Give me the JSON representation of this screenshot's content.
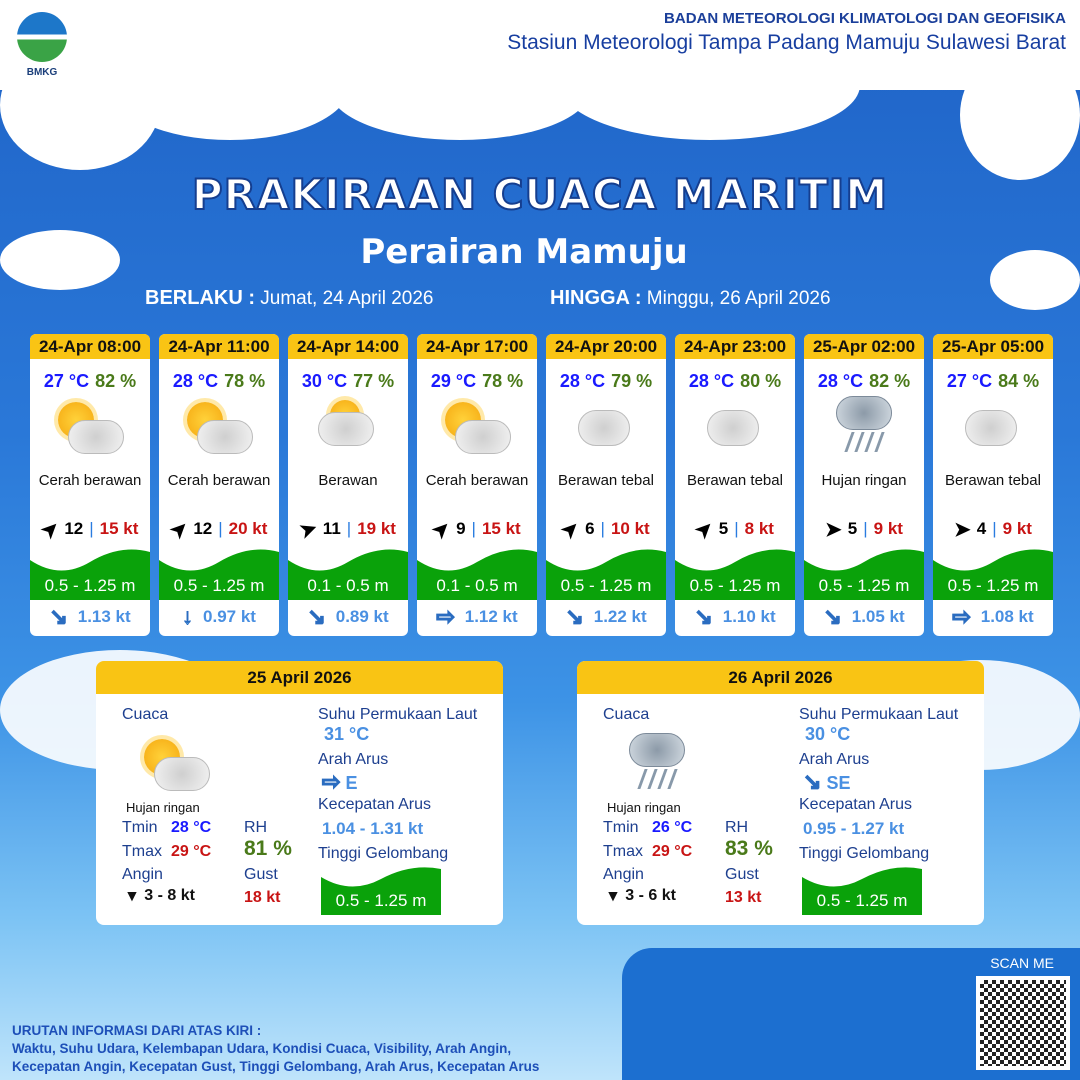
{
  "header": {
    "org": "BADAN METEOROLOGI KLIMATOLOGI DAN GEOFISIKA",
    "station": "Stasiun Meteorologi Tampa Padang Mamuju Sulawesi Barat",
    "logo_text": "BMKG"
  },
  "title": "PRAKIRAAN CUACA MARITIM",
  "subtitle": "Perairan Mamuju",
  "valid": {
    "from_label": "BERLAKU :",
    "from": "Jumat, 24 April 2026",
    "to_label": "HINGGA :",
    "to": "Minggu, 26 April 2026"
  },
  "forecasts": [
    {
      "time": "24-Apr 08:00",
      "temp": "27 °C",
      "rh": "82 %",
      "icon": "sun-cloud",
      "cond": "Cerah berawan",
      "wind_dir_deg": -45,
      "wind": "12",
      "gust": "15 kt",
      "wave": "0.5 - 1.25 m",
      "cur_dir": "↘",
      "current": "1.13 kt"
    },
    {
      "time": "24-Apr 11:00",
      "temp": "28 °C",
      "rh": "78 %",
      "icon": "sun-cloud",
      "cond": "Cerah berawan",
      "wind_dir_deg": -45,
      "wind": "12",
      "gust": "20 kt",
      "wave": "0.5 - 1.25 m",
      "cur_dir": "↓",
      "current": "0.97 kt"
    },
    {
      "time": "24-Apr 14:00",
      "temp": "30 °C",
      "rh": "77 %",
      "icon": "cloudy",
      "cond": "Berawan",
      "wind_dir_deg": -20,
      "wind": "11",
      "gust": "19 kt",
      "wave": "0.1 - 0.5 m",
      "cur_dir": "↘",
      "current": "0.89 kt"
    },
    {
      "time": "24-Apr 17:00",
      "temp": "29 °C",
      "rh": "78 %",
      "icon": "sun-cloud",
      "cond": "Cerah berawan",
      "wind_dir_deg": -45,
      "wind": "9",
      "gust": "15 kt",
      "wave": "0.1 - 0.5 m",
      "cur_dir": "⇨",
      "current": "1.12 kt"
    },
    {
      "time": "24-Apr 20:00",
      "temp": "28 °C",
      "rh": "79 %",
      "icon": "overcast",
      "cond": "Berawan tebal",
      "wind_dir_deg": -45,
      "wind": "6",
      "gust": "10 kt",
      "wave": "0.5 - 1.25 m",
      "cur_dir": "↘",
      "current": "1.22 kt"
    },
    {
      "time": "24-Apr 23:00",
      "temp": "28 °C",
      "rh": "80 %",
      "icon": "overcast",
      "cond": "Berawan tebal",
      "wind_dir_deg": -45,
      "wind": "5",
      "gust": "8 kt",
      "wave": "0.5 - 1.25 m",
      "cur_dir": "↘",
      "current": "1.10 kt"
    },
    {
      "time": "25-Apr 02:00",
      "temp": "28 °C",
      "rh": "82 %",
      "icon": "rain",
      "cond": "Hujan ringan",
      "wind_dir_deg": 0,
      "wind": "5",
      "gust": "9 kt",
      "wave": "0.5 - 1.25 m",
      "cur_dir": "↘",
      "current": "1.05 kt"
    },
    {
      "time": "25-Apr 05:00",
      "temp": "27 °C",
      "rh": "84 %",
      "icon": "overcast",
      "cond": "Berawan tebal",
      "wind_dir_deg": 0,
      "wind": "4",
      "gust": "9 kt",
      "wave": "0.5 - 1.25 m",
      "cur_dir": "⇨",
      "current": "1.08 kt"
    }
  ],
  "daily": [
    {
      "date": "25 April 2026",
      "icon": "sun-cloud",
      "cond": "Hujan ringan",
      "tmin": "28 °C",
      "tmax": "29 °C",
      "rh": "81 %",
      "wind": "3  - 8 kt",
      "gust": "18 kt",
      "sst": "31 °C",
      "cur_dir": "⇨",
      "cur_dir_label": "E",
      "cur_speed": "1.04 - 1.31 kt",
      "wave": "0.5 - 1.25 m"
    },
    {
      "date": "26 April 2026",
      "icon": "rain",
      "cond": "Hujan ringan",
      "tmin": "26 °C",
      "tmax": "29 °C",
      "rh": "83 %",
      "wind": "3  - 6 kt",
      "gust": "13 kt",
      "sst": "30 °C",
      "cur_dir": "↘",
      "cur_dir_label": "SE",
      "cur_speed": "0.95  - 1.27 kt",
      "wave": "0.5 - 1.25 m"
    }
  ],
  "labels": {
    "cuaca": "Cuaca",
    "tmin": "Tmin",
    "tmax": "Tmax",
    "angin": "Angin",
    "rh": "RH",
    "gust": "Gust",
    "sst": "Suhu Permukaan Laut",
    "arah": "Arah Arus",
    "kec": "Kecepatan Arus",
    "tinggi": "Tinggi Gelombang"
  },
  "footer": {
    "heading": "URUTAN INFORMASI DARI ATAS KIRI :",
    "line1": "Waktu, Suhu Udara, Kelembapan Udara, Kondisi Cuaca, Visibility, Arah Angin,",
    "line2": "Kecepatan Angin, Kecepatan Gust, Tinggi Gelombang, Arah Arus, Kecepatan Arus",
    "scan": "SCAN ME"
  },
  "colors": {
    "header_yellow": "#f9c414",
    "wave_green": "#0aa20a",
    "temp_blue": "#1a1aff",
    "rh_green": "#4a7a1a",
    "gust_red": "#c81414"
  }
}
